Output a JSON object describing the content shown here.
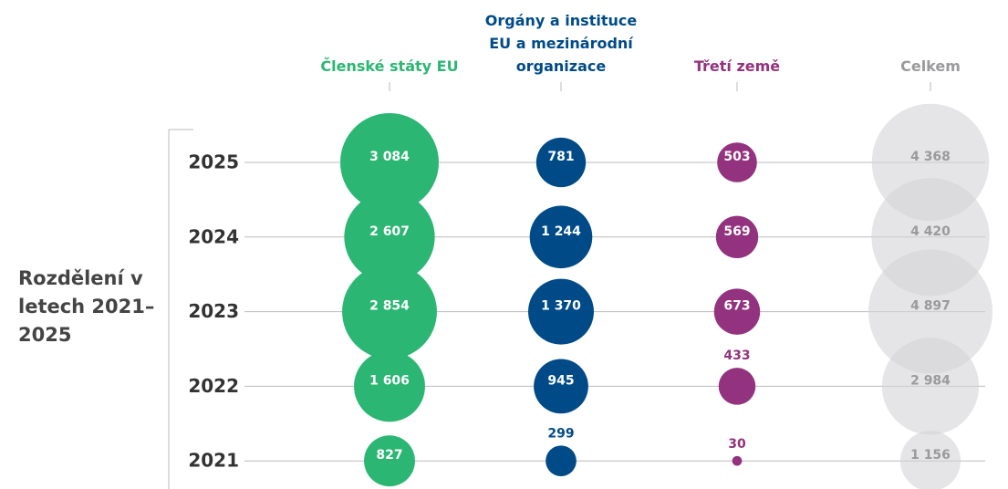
{
  "chart_data": {
    "type": "bubble",
    "title": "Rozdělení v letech 2021–2025",
    "categories": [
      "2025",
      "2024",
      "2023",
      "2022",
      "2021"
    ],
    "series": [
      {
        "name": "Členské státy EU",
        "color": "#2bb673",
        "label_color": "#2bb673",
        "values": [
          3084,
          2607,
          2854,
          1606,
          827
        ],
        "value_labels": [
          "3 084",
          "2 607",
          "2 854",
          "1 606",
          "827"
        ]
      },
      {
        "name": "Orgány a instituce EU a mezinárodní organizace",
        "color": "#004b87",
        "label_color": "#004b87",
        "values": [
          781,
          1244,
          1370,
          945,
          299
        ],
        "value_labels": [
          "781",
          "1 244",
          "1 370",
          "945",
          "299"
        ]
      },
      {
        "name": "Třetí země",
        "color": "#93327e",
        "label_color": "#93327e",
        "values": [
          503,
          569,
          673,
          433,
          30
        ],
        "value_labels": [
          "503",
          "569",
          "673",
          "433",
          "30"
        ]
      },
      {
        "name": "Celkem",
        "color": "#d4d4d7",
        "label_color": "#9a9a9c",
        "values": [
          4368,
          4420,
          4897,
          2984,
          1156
        ],
        "value_labels": [
          "4 368",
          "4 420",
          "4 897",
          "2 984",
          "1 156"
        ]
      }
    ]
  }
}
